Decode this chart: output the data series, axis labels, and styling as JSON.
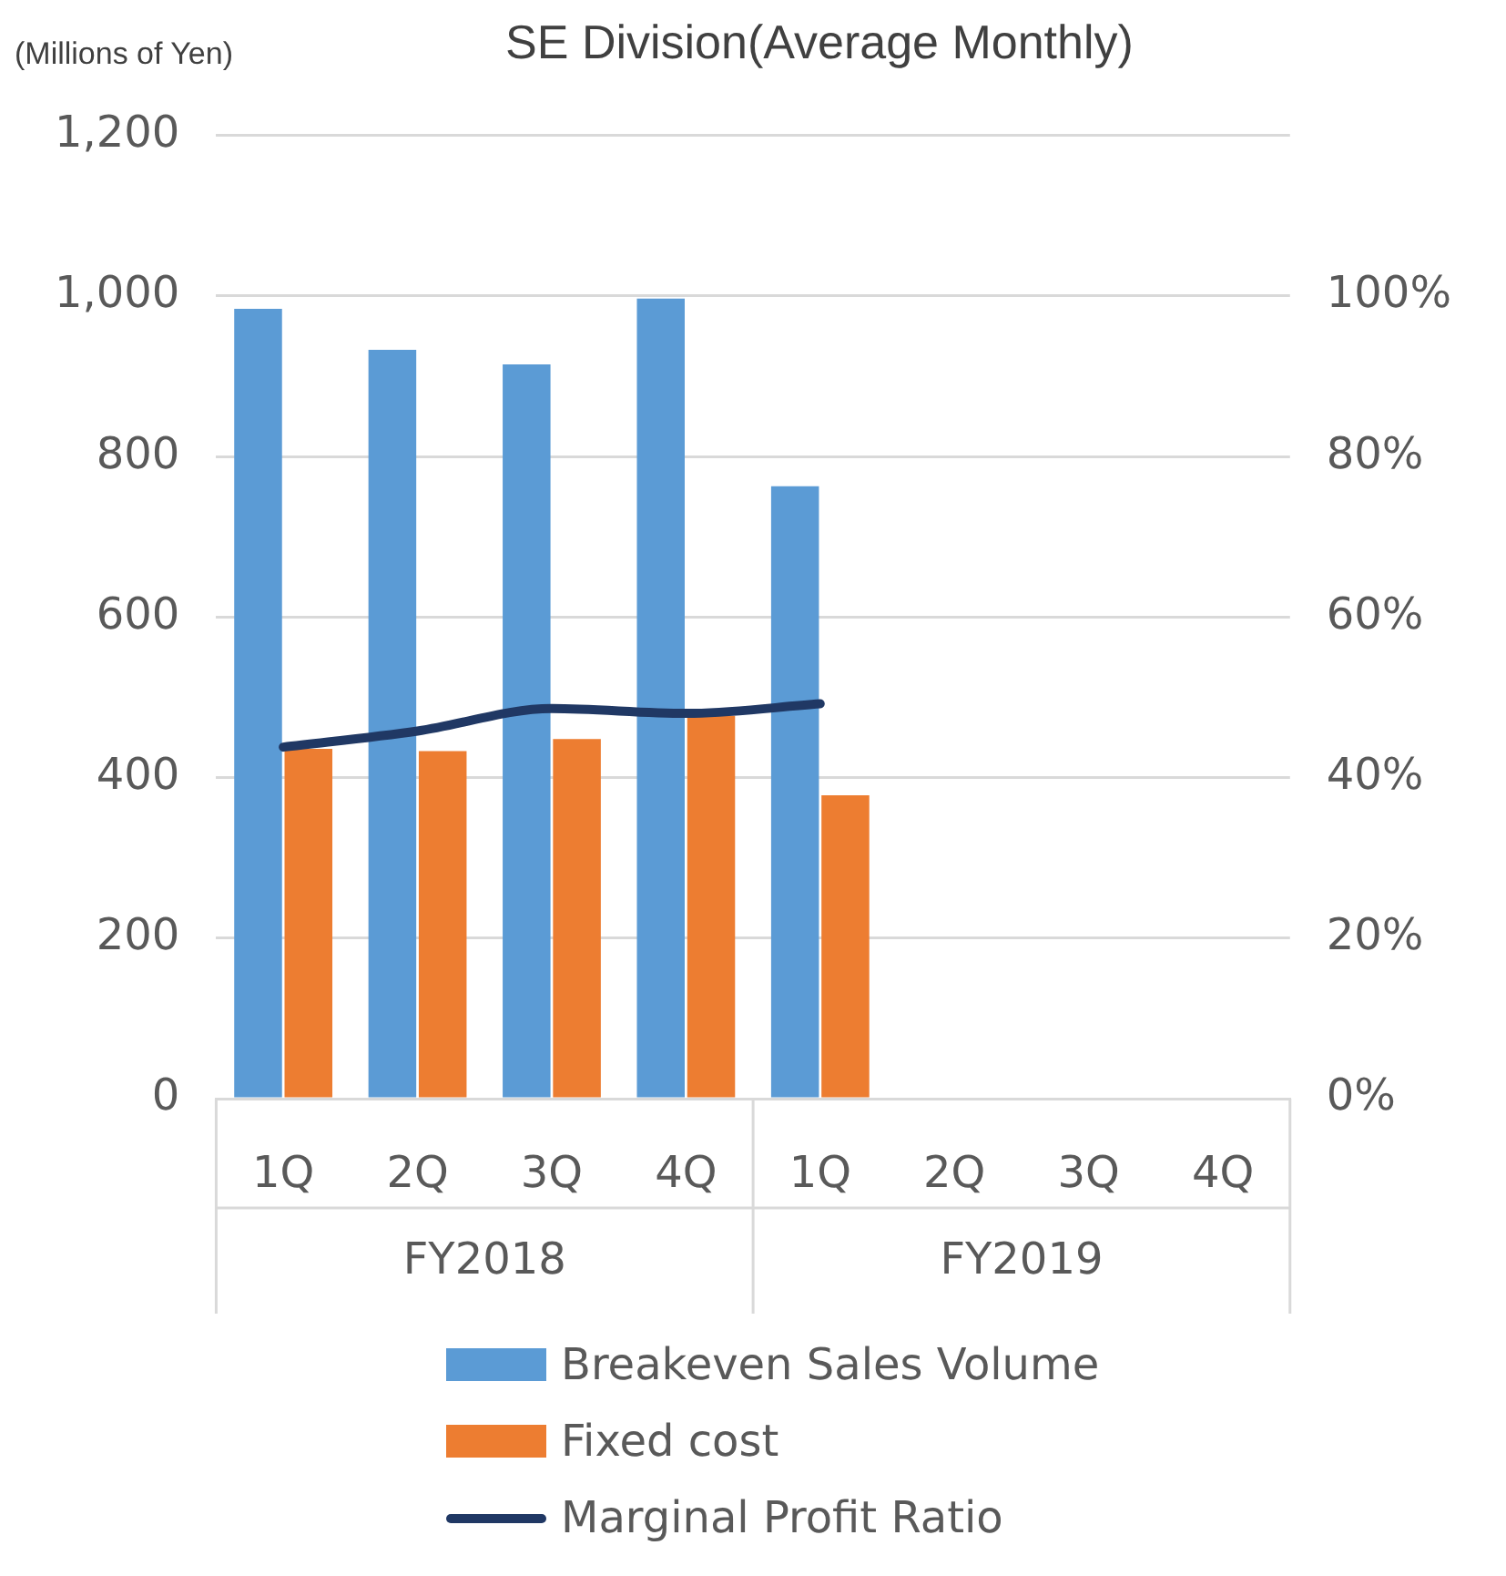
{
  "chart_data": {
    "type": "bar",
    "title": "SE Division(Average Monthly)",
    "ylabel": "(Millions of Yen)",
    "categories": [
      "1Q",
      "2Q",
      "3Q",
      "4Q",
      "1Q",
      "2Q",
      "3Q",
      "4Q"
    ],
    "series": [
      {
        "name": "Breakeven Sales Volume",
        "color": "#5b9bd5",
        "values": [
          984,
          933,
          915,
          997,
          763,
          null,
          null,
          null
        ]
      },
      {
        "name": "Fixed cost",
        "color": "#ed7d31",
        "values": [
          436,
          433,
          448,
          477,
          378,
          null,
          null,
          null
        ]
      },
      {
        "name": "Marginal Profit Ratio",
        "type": "line",
        "axis": "y2",
        "color": "#203864",
        "values": [
          43.8,
          45.8,
          48.6,
          48.0,
          49.2,
          null,
          null,
          null
        ]
      }
    ],
    "ylim": [
      0,
      1200
    ],
    "yticks": [
      {
        "value": 0,
        "label": "0"
      },
      {
        "value": 200,
        "label": "200"
      },
      {
        "value": 400,
        "label": "400"
      },
      {
        "value": 600,
        "label": "600"
      },
      {
        "value": 800,
        "label": "800"
      },
      {
        "value": 1000,
        "label": "1,000"
      },
      {
        "value": 1200,
        "label": "1,200"
      }
    ],
    "y2lim": [
      0,
      120
    ],
    "y2ticks": [
      {
        "value": 0,
        "label": "0%"
      },
      {
        "value": 20,
        "label": "20%"
      },
      {
        "value": 40,
        "label": "40%"
      },
      {
        "value": 60,
        "label": "60%"
      },
      {
        "value": 80,
        "label": "80%"
      },
      {
        "value": 100,
        "label": "100%"
      }
    ],
    "annotations": [
      "FY2018",
      "FY2019"
    ],
    "grid": "y",
    "legend": "bottom",
    "marker": "none",
    "line_style": "solid"
  }
}
